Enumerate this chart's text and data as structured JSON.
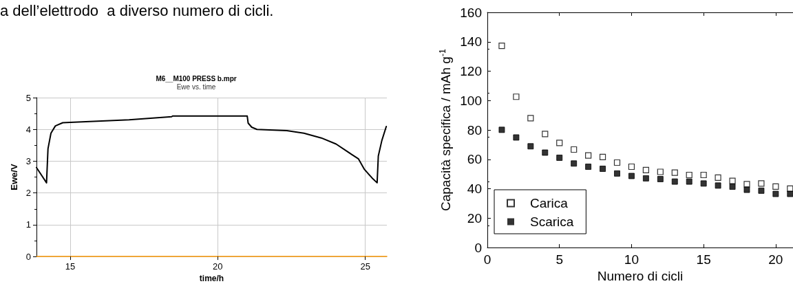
{
  "chart_data": [
    {
      "type": "line",
      "title": "M6__M100 PRESS b.mpr",
      "subtitle": "Ewe vs. time",
      "xlabel": "time/h",
      "ylabel": "Ewe/V",
      "annotations": [
        "a dell’elettrodo  a diverso numero di cicli."
      ],
      "xlim": [
        13.86,
        25.73
      ],
      "xticks": [
        15,
        20,
        25
      ],
      "ylim": [
        0,
        5
      ],
      "yticks": [
        0,
        1,
        2,
        3,
        4,
        5
      ],
      "grid": true,
      "legend": false,
      "marker": "none",
      "line_style": "solid",
      "series": [
        {
          "color": "#000000",
          "x": [
            13.86,
            14.2,
            14.25,
            14.35,
            14.5,
            14.75,
            15,
            17,
            18.44,
            18.47,
            21.0,
            21.03,
            21.15,
            21.33,
            22.34,
            22.92,
            23.51,
            24.01,
            24.51,
            24.77,
            24.97,
            25.23,
            25.4,
            25.44,
            25.56,
            25.71
          ],
          "values": [
            2.8,
            2.32,
            3.39,
            3.88,
            4.11,
            4.21,
            4.22,
            4.3,
            4.4,
            4.42,
            4.42,
            4.2,
            4.07,
            4.0,
            3.96,
            3.88,
            3.73,
            3.54,
            3.23,
            3.07,
            2.74,
            2.47,
            2.32,
            3.16,
            3.65,
            4.09
          ]
        }
      ]
    },
    {
      "type": "scatter",
      "xlabel": "Numero di cicli",
      "ylabel": "Capacità specifica / mAh g$^{-1}$",
      "xlim": [
        0,
        21.2
      ],
      "xticks": [
        0,
        5,
        10,
        15,
        20
      ],
      "ylim": [
        0,
        160
      ],
      "yticks": [
        0,
        20,
        40,
        60,
        80,
        100,
        120,
        140,
        160
      ],
      "grid": false,
      "legend": "bottom left",
      "marker": "square",
      "x": [
        1,
        2,
        3,
        4,
        5,
        6,
        7,
        8,
        9,
        10,
        11,
        12,
        13,
        14,
        15,
        16,
        17,
        18,
        19,
        20,
        21
      ],
      "series": [
        {
          "name": "Carica",
          "color": "#000000",
          "values": [
            137.3,
            102.6,
            88.0,
            77.3,
            71.2,
            66.7,
            62.7,
            61.6,
            57.8,
            55.0,
            52.7,
            51.5,
            51.0,
            49.4,
            49.4,
            47.6,
            45.4,
            43.1,
            43.6,
            41.5,
            40.1
          ]
        },
        {
          "name": "Scarica",
          "color": "#000000",
          "values": [
            80.1,
            74.9,
            68.9,
            64.6,
            61.1,
            57.2,
            55.0,
            53.6,
            50.4,
            48.7,
            47.1,
            46.6,
            44.9,
            44.9,
            43.6,
            42.2,
            41.4,
            39.3,
            38.7,
            36.5,
            36.5
          ]
        }
      ]
    }
  ]
}
